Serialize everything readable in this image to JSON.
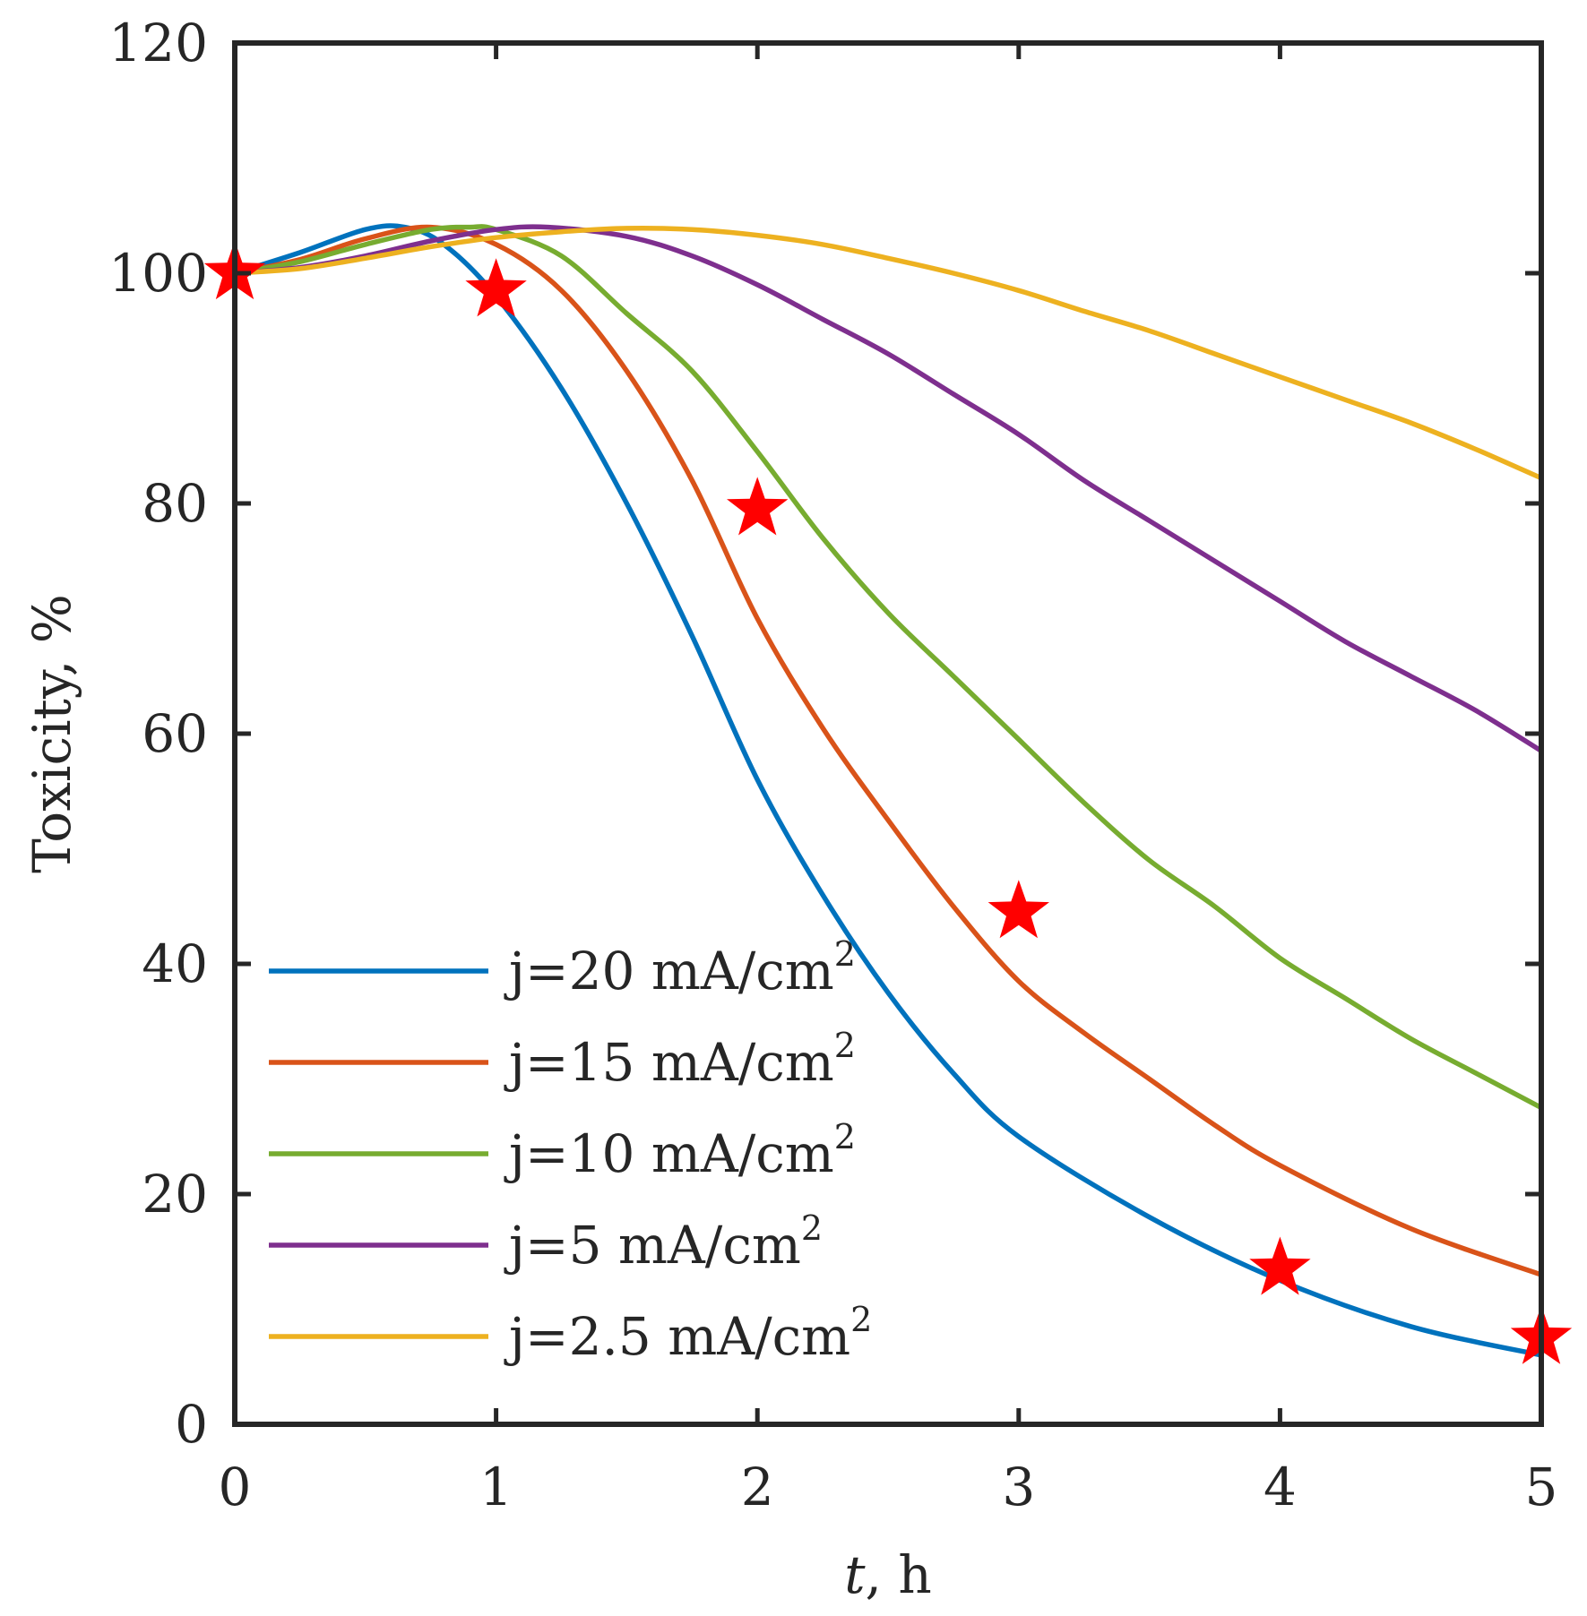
{
  "chart_data": {
    "type": "line",
    "xlabel_var": "t",
    "xlabel_unit": ", h",
    "ylabel": "Toxicity, %",
    "xlim": [
      0,
      5
    ],
    "ylim": [
      0,
      120
    ],
    "x_ticks": [
      "0",
      "1",
      "2",
      "3",
      "4",
      "5"
    ],
    "y_ticks": [
      "0",
      "20",
      "40",
      "60",
      "80",
      "100",
      "120"
    ],
    "series": [
      {
        "name": "j=20 mA/cm",
        "sup": "2",
        "color": "#0072BD",
        "points": [
          [
            0,
            100
          ],
          [
            0.25,
            101.8
          ],
          [
            0.5,
            103.8
          ],
          [
            0.65,
            104
          ],
          [
            0.8,
            102.5
          ],
          [
            1,
            98
          ],
          [
            1.25,
            90
          ],
          [
            1.5,
            80
          ],
          [
            1.75,
            68.5
          ],
          [
            2,
            56
          ],
          [
            2.25,
            46
          ],
          [
            2.5,
            37.5
          ],
          [
            2.75,
            30.5
          ],
          [
            3,
            25
          ],
          [
            3.5,
            18
          ],
          [
            4,
            12.5
          ],
          [
            4.5,
            8.5
          ],
          [
            5,
            6
          ]
        ]
      },
      {
        "name": "j=15 mA/cm",
        "sup": "2",
        "color": "#D95319",
        "points": [
          [
            0,
            100
          ],
          [
            0.25,
            101.2
          ],
          [
            0.5,
            103
          ],
          [
            0.75,
            104
          ],
          [
            1,
            102.5
          ],
          [
            1.25,
            98.5
          ],
          [
            1.5,
            91.5
          ],
          [
            1.75,
            82
          ],
          [
            2,
            70
          ],
          [
            2.25,
            60.5
          ],
          [
            2.5,
            52.5
          ],
          [
            2.75,
            45
          ],
          [
            3,
            38.5
          ],
          [
            3.25,
            34
          ],
          [
            3.5,
            30
          ],
          [
            3.75,
            26
          ],
          [
            4,
            22.5
          ],
          [
            4.5,
            17
          ],
          [
            5,
            13
          ]
        ]
      },
      {
        "name": "j=10 mA/cm",
        "sup": "2",
        "color": "#77AC30",
        "points": [
          [
            0,
            100
          ],
          [
            0.25,
            101
          ],
          [
            0.5,
            102.5
          ],
          [
            0.75,
            103.8
          ],
          [
            0.9,
            104
          ],
          [
            1,
            103.8
          ],
          [
            1.25,
            101.5
          ],
          [
            1.5,
            96.5
          ],
          [
            1.75,
            91.5
          ],
          [
            2,
            84.5
          ],
          [
            2.25,
            77
          ],
          [
            2.5,
            70.5
          ],
          [
            2.75,
            65
          ],
          [
            3,
            59.5
          ],
          [
            3.25,
            54
          ],
          [
            3.5,
            49
          ],
          [
            3.75,
            45
          ],
          [
            4,
            40.5
          ],
          [
            4.25,
            37
          ],
          [
            4.5,
            33.5
          ],
          [
            4.75,
            30.5
          ],
          [
            5,
            27.5
          ]
        ]
      },
      {
        "name": "j=5 mA/cm",
        "sup": "2",
        "color": "#7E2F8E",
        "points": [
          [
            0,
            100
          ],
          [
            0.25,
            100.5
          ],
          [
            0.5,
            101.5
          ],
          [
            0.75,
            102.8
          ],
          [
            1,
            103.8
          ],
          [
            1.2,
            104
          ],
          [
            1.5,
            103.2
          ],
          [
            1.75,
            101.5
          ],
          [
            2,
            99
          ],
          [
            2.25,
            96
          ],
          [
            2.5,
            93
          ],
          [
            2.75,
            89.5
          ],
          [
            3,
            86
          ],
          [
            3.25,
            82
          ],
          [
            3.5,
            78.5
          ],
          [
            3.75,
            75
          ],
          [
            4,
            71.5
          ],
          [
            4.25,
            68
          ],
          [
            4.5,
            65
          ],
          [
            4.75,
            62
          ],
          [
            5,
            58.5
          ]
        ]
      },
      {
        "name": "j=2.5 mA/cm",
        "sup": "2",
        "color": "#EDB120",
        "points": [
          [
            0,
            100
          ],
          [
            0.25,
            100.4
          ],
          [
            0.5,
            101.3
          ],
          [
            0.75,
            102.3
          ],
          [
            1,
            103.1
          ],
          [
            1.25,
            103.6
          ],
          [
            1.5,
            103.9
          ],
          [
            1.75,
            103.8
          ],
          [
            2,
            103.3
          ],
          [
            2.25,
            102.5
          ],
          [
            2.5,
            101.3
          ],
          [
            2.75,
            100
          ],
          [
            3,
            98.5
          ],
          [
            3.25,
            96.7
          ],
          [
            3.5,
            95
          ],
          [
            3.75,
            93
          ],
          [
            4,
            91
          ],
          [
            4.25,
            89
          ],
          [
            4.5,
            87
          ],
          [
            4.75,
            84.7
          ],
          [
            5,
            82.2
          ]
        ]
      }
    ],
    "experimental": {
      "color": "#FF0000",
      "points": [
        [
          0,
          100
        ],
        [
          1,
          98.5
        ],
        [
          2,
          79.5
        ],
        [
          3,
          44.5
        ],
        [
          4,
          13.5
        ],
        [
          5,
          7.5
        ]
      ]
    }
  }
}
